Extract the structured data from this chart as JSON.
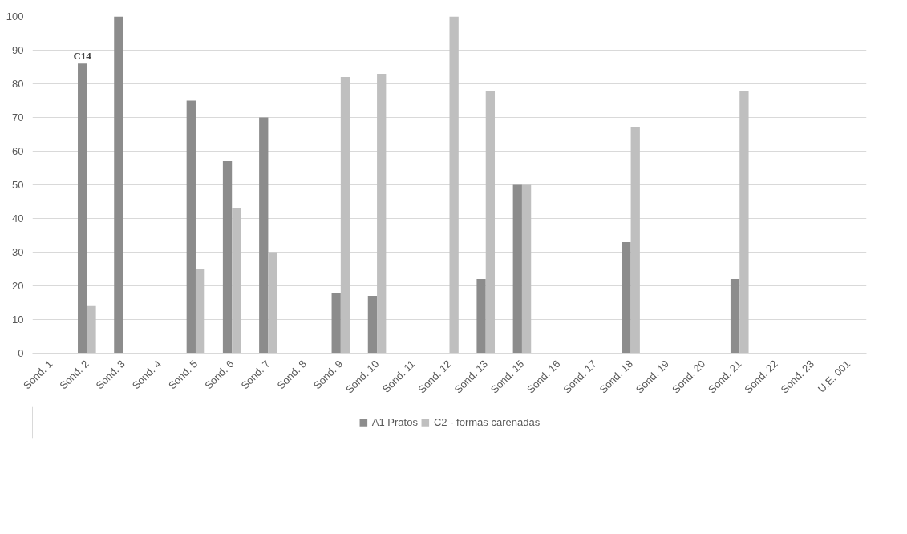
{
  "chart_data": {
    "type": "bar",
    "categories": [
      "Sond. 1",
      "Sond. 2",
      "Sond. 3",
      "Sond. 4",
      "Sond. 5",
      "Sond. 6",
      "Sond. 7",
      "Sond. 8",
      "Sond. 9",
      "Sond. 10",
      "Sond. 11",
      "Sond. 12",
      "Sond. 13",
      "Sond. 15",
      "Sond. 16",
      "Sond. 17",
      "Sond. 18",
      "Sond. 19",
      "Sond. 20",
      "Sond. 21",
      "Sond. 22",
      "Sond. 23",
      "U.E. 001"
    ],
    "series": [
      {
        "name": "A1 Pratos",
        "color": "#8c8c8c",
        "values": [
          null,
          86,
          100,
          null,
          75,
          57,
          70,
          null,
          18,
          17,
          null,
          null,
          22,
          50,
          null,
          null,
          33,
          null,
          null,
          22,
          null,
          null,
          null
        ]
      },
      {
        "name": "C2 - formas carenadas",
        "color": "#bfbfbf",
        "values": [
          null,
          14,
          null,
          null,
          25,
          43,
          30,
          null,
          82,
          83,
          null,
          100,
          78,
          50,
          null,
          null,
          67,
          null,
          null,
          78,
          null,
          null,
          null
        ]
      }
    ],
    "ylim": [
      0,
      100
    ],
    "yticks": [
      0,
      10,
      20,
      30,
      40,
      50,
      60,
      70,
      80,
      90,
      100
    ],
    "grid": "y",
    "legend": "bottom",
    "annotations": [
      {
        "text": "C14",
        "x": "Sond. 2",
        "y": 86
      }
    ]
  }
}
